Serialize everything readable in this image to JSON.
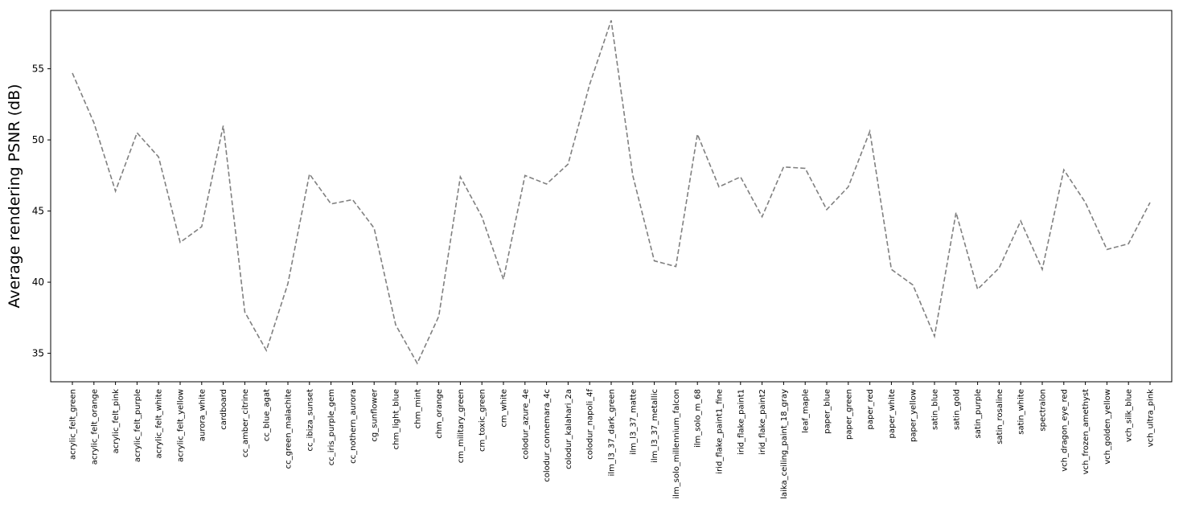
{
  "chart_data": {
    "type": "line",
    "title": "",
    "xlabel": "",
    "ylabel": "Average rendering PSNR (dB)",
    "ylim": [
      33.0,
      59.1
    ],
    "yticks": [
      35,
      40,
      45,
      50,
      55
    ],
    "grid": false,
    "line_color": "#808080",
    "line_style": "dashed",
    "categories": [
      "acrylic_felt_green",
      "acrylic_felt_orange",
      "acrylic_felt_pink",
      "acrylic_felt_purple",
      "acrylic_felt_white",
      "acrylic_felt_yellow",
      "aurora_white",
      "cardboard",
      "cc_amber_citrine",
      "cc_blue_agat",
      "cc_green_malachite",
      "cc_ibiza_sunset",
      "cc_iris_purple_gem",
      "cc_nothern_aurora",
      "cg_sunflower",
      "chm_light_blue",
      "chm_mint",
      "chm_orange",
      "cm_military_green",
      "cm_toxic_green",
      "cm_white",
      "colodur_azure_4e",
      "colodur_connemara_4c",
      "colodur_kalahari_2a",
      "colodur_napoli_4f",
      "ilm_l3_37_dark_green",
      "ilm_l3_37_matte",
      "ilm_l3_37_metallic",
      "ilm_solo_millennium_falcon",
      "ilm_solo_m_68",
      "irid_flake_paint1_fine",
      "irid_flake_paint1",
      "irid_flake_paint2",
      "laika_ceiling_paint_18_gray",
      "leaf_maple",
      "paper_blue",
      "paper_green",
      "paper_red",
      "paper_white",
      "paper_yellow",
      "satin_blue",
      "satin_gold",
      "satin_purple",
      "satin_rosaline",
      "satin_white",
      "spectralon",
      "vch_dragon_eye_red",
      "vch_frozen_amethyst",
      "vch_golden_yellow",
      "vch_silk_blue",
      "vch_ultra_pink"
    ],
    "values": [
      54.7,
      51.2,
      46.4,
      50.5,
      48.8,
      42.8,
      43.9,
      51.0,
      37.9,
      35.2,
      39.9,
      47.6,
      45.5,
      45.8,
      43.8,
      37.0,
      34.3,
      37.6,
      47.4,
      44.6,
      40.2,
      47.5,
      46.9,
      48.3,
      53.9,
      58.4,
      47.5,
      41.5,
      41.1,
      50.4,
      46.7,
      47.4,
      44.6,
      48.1,
      48.0,
      45.1,
      46.7,
      50.6,
      40.9,
      39.8,
      36.2,
      44.9,
      39.5,
      41.0,
      44.3,
      40.9,
      47.9,
      45.6,
      42.3,
      42.7,
      45.6
    ]
  }
}
